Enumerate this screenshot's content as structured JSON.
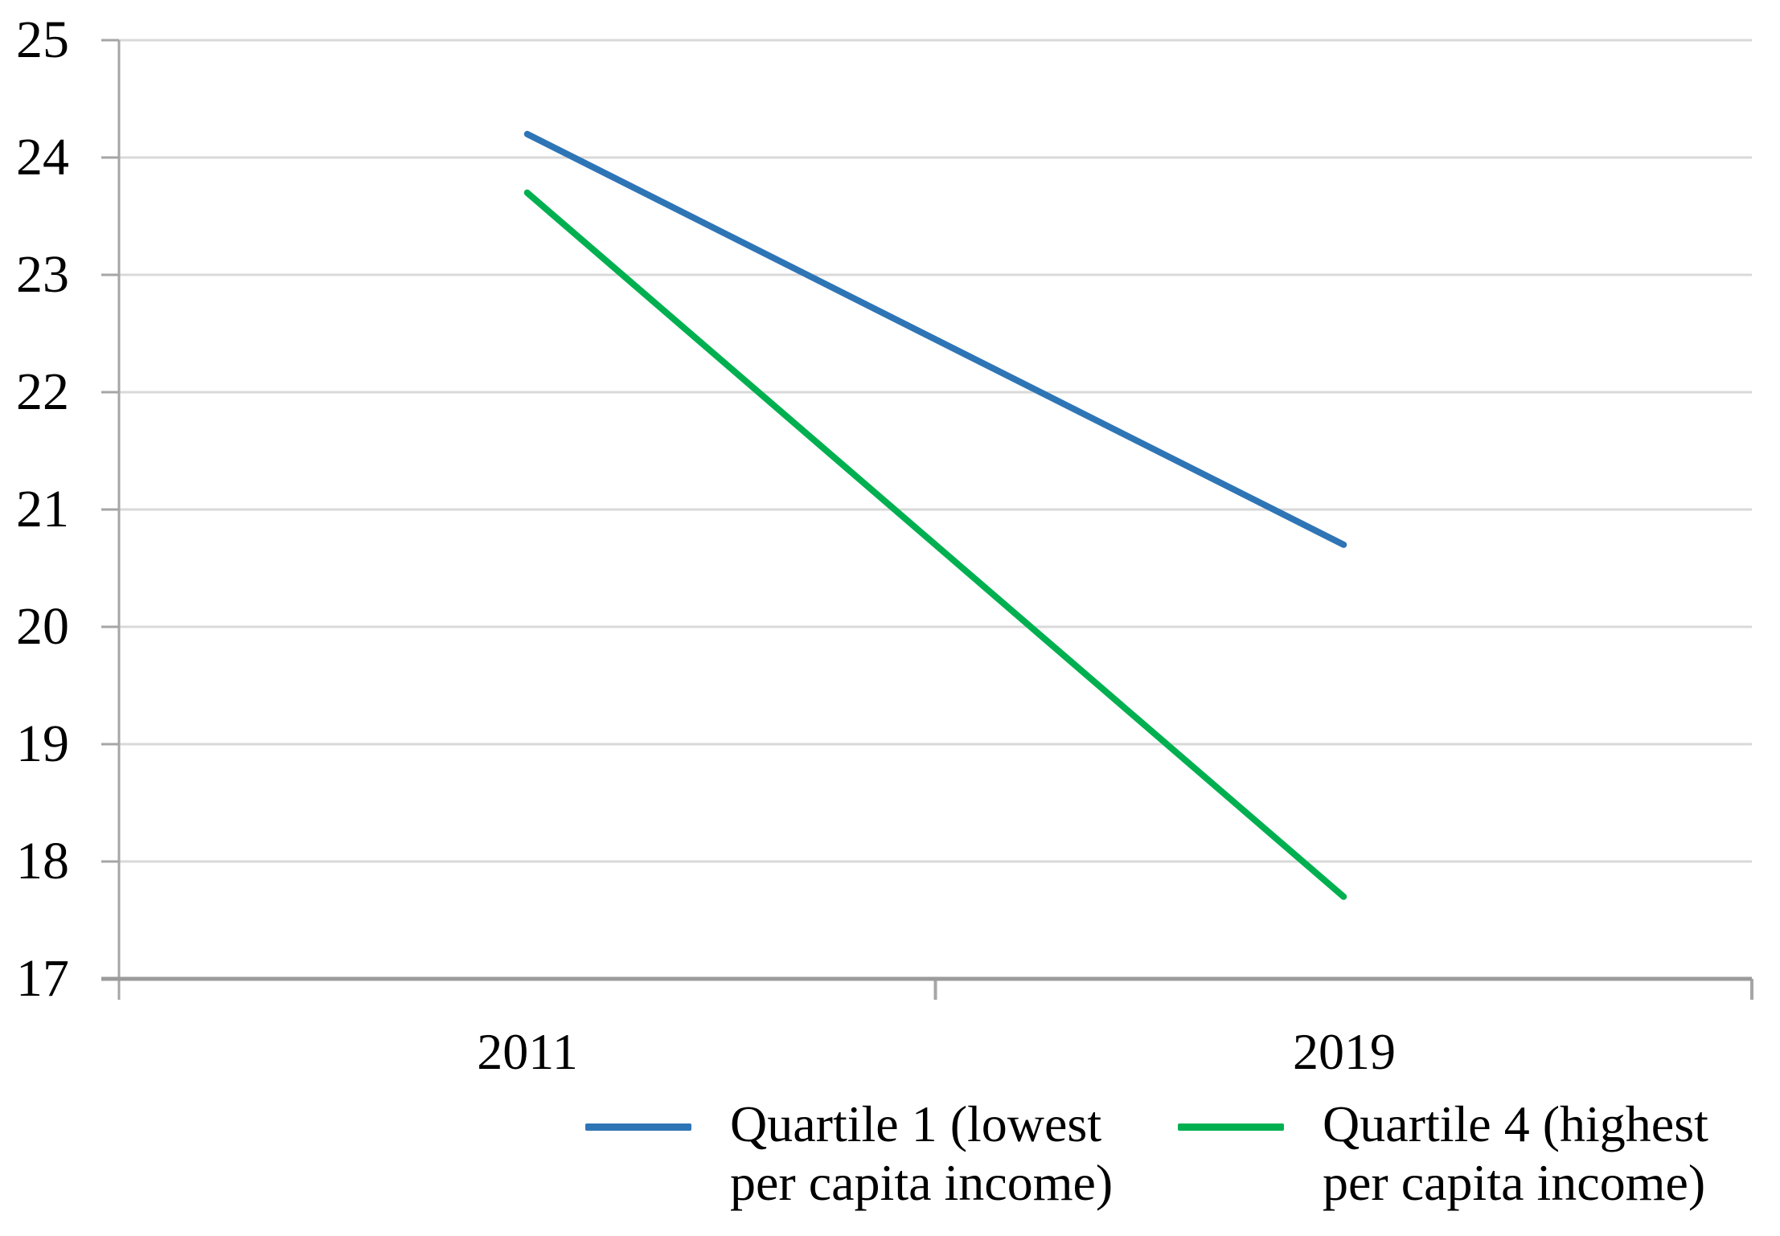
{
  "chart_data": {
    "type": "line",
    "categories": [
      "2011",
      "2019"
    ],
    "series": [
      {
        "name": "Quartile 1 (lowest per capita income)",
        "legend_lines": [
          "Quartile 1 (lowest",
          "per capita income)"
        ],
        "color": "#2E75B6",
        "values": [
          24.2,
          20.7
        ]
      },
      {
        "name": "Quartile 4 (highest per capita income)",
        "legend_lines": [
          "Quartile 4 (highest",
          "per capita income)"
        ],
        "color": "#00B050",
        "values": [
          23.7,
          17.7
        ]
      }
    ],
    "title": "",
    "xlabel": "",
    "ylabel": "",
    "ylim": [
      17,
      25
    ],
    "yticks": [
      25,
      24,
      23,
      22,
      21,
      20,
      19,
      18,
      17
    ],
    "grid": true,
    "legend_position": "bottom",
    "colors": {
      "gridline": "#D9D9D9",
      "axis": "#A6A6A6",
      "x_axis": "#9B9B9B",
      "text": "#000000"
    }
  }
}
